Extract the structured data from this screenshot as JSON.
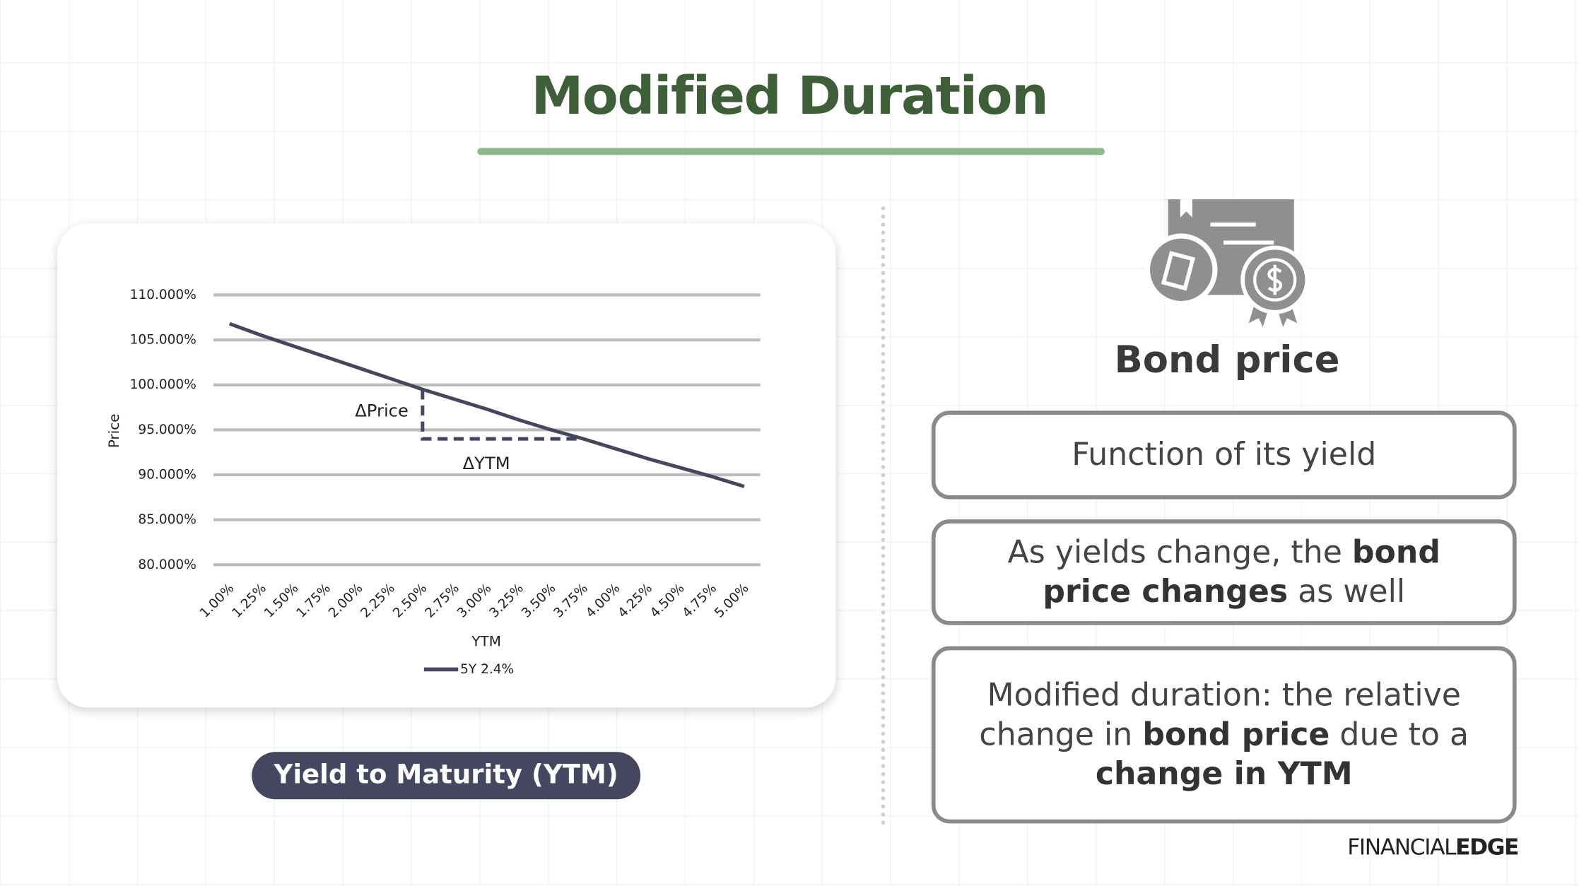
{
  "header": {
    "title": "Modified Duration"
  },
  "chart_data": {
    "type": "line",
    "x_label": "YTM",
    "y_label": "Price",
    "categories": [
      "1.00%",
      "1.25%",
      "1.50%",
      "1.75%",
      "2.00%",
      "2.25%",
      "2.50%",
      "2.75%",
      "3.00%",
      "3.25%",
      "3.50%",
      "3.75%",
      "4.00%",
      "4.25%",
      "4.50%",
      "4.75%",
      "5.00%"
    ],
    "series": [
      {
        "name": "5Y 2.4%",
        "color": "#454760",
        "values": [
          106.8,
          105.5,
          104.3,
          103.1,
          101.9,
          100.7,
          99.5,
          98.4,
          97.3,
          96.1,
          95.0,
          94.0,
          92.9,
          91.8,
          90.8,
          89.8,
          88.7
        ]
      }
    ],
    "ylim": [
      80,
      110
    ],
    "yticks": [
      {
        "value": 80,
        "label": "80.000%"
      },
      {
        "value": 85,
        "label": "85.000%"
      },
      {
        "value": 90,
        "label": "90.000%"
      },
      {
        "value": 95,
        "label": "95.000%"
      },
      {
        "value": 100,
        "label": "100.000%"
      },
      {
        "value": 105,
        "label": "105.000%"
      },
      {
        "value": 110,
        "label": "110.000%"
      }
    ],
    "grid": true,
    "annotations": [
      "ΔPrice",
      "ΔYTM"
    ]
  },
  "caption": "Yield to Maturity (YTM)",
  "panel": {
    "title": "Bond price",
    "boxes": [
      {
        "segments": [
          {
            "text": "Function of its yield",
            "bold": false
          }
        ]
      },
      {
        "segments": [
          {
            "text": "As yields change, the ",
            "bold": false
          },
          {
            "text": "bond price changes",
            "bold": true
          },
          {
            "text": " as well",
            "bold": false
          }
        ]
      },
      {
        "segments": [
          {
            "text": "Modified duration: the relative change in ",
            "bold": false
          },
          {
            "text": "bond price",
            "bold": true
          },
          {
            "text": " due to a ",
            "bold": false
          },
          {
            "text": "change in YTM",
            "bold": true
          }
        ]
      }
    ]
  },
  "logo": {
    "light": "FINANCIAL",
    "bold": "EDGE"
  }
}
